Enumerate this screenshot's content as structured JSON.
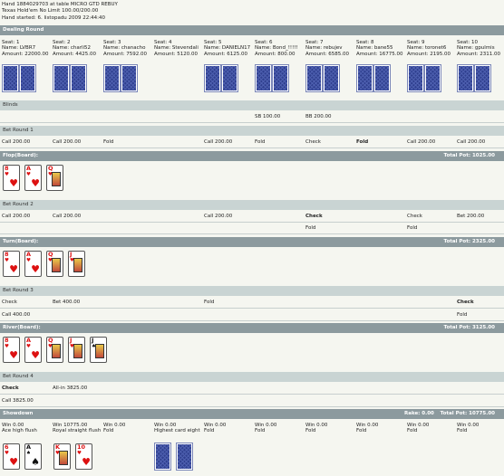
{
  "header": {
    "lines": [
      "Hand 1884029703 at table MICRO GTD REBUY",
      "Texas Hold'em No Limit 100.00/200.00",
      "Hand started: 6. listopadu 2009 22:44:40"
    ]
  },
  "sections": {
    "dealing": "Dealing Round",
    "blinds": "Blinds",
    "bet1": "Bet Round 1",
    "flop": "Flop(Board):",
    "bet2": "Bet Round 2",
    "turn": "Turn(Board):",
    "bet3": "Bet Round 3",
    "river": "River(Board):",
    "bet4": "Bet Round 4",
    "showdown": "Showdown"
  },
  "totals": {
    "flop": "Total Pot: 1025.00",
    "turn": "Total Pot: 2325.00",
    "river": "Total Pot: 3125.00",
    "showdown": "Total Pot: 10775.00",
    "rake": "Rake: 0.00"
  },
  "seats": [
    {
      "seat": "Seat: 1",
      "name": "Name: LVBR7",
      "amount": "Amount: 22000.00"
    },
    {
      "seat": "Seat: 2",
      "name": "Name: charli52",
      "amount": "Amount: 4425.00"
    },
    {
      "seat": "Seat: 3",
      "name": "Name: chanacho",
      "amount": "Amount: 7592.00"
    },
    {
      "seat": "Seat: 4",
      "name": "Name: Stevendali",
      "amount": "Amount: 5120.00"
    },
    {
      "seat": "Seat: 5",
      "name": "Name: DANIELN17",
      "amount": "Amount: 6125.00"
    },
    {
      "seat": "Seat: 6",
      "name": "Name: Bond_!!!!!",
      "amount": "Amount: 800.00"
    },
    {
      "seat": "Seat: 7",
      "name": "Name: rebujev",
      "amount": "Amount: 6585.00"
    },
    {
      "seat": "Seat: 8",
      "name": "Name: bane55",
      "amount": "Amount: 16775.00"
    },
    {
      "seat": "Seat: 9",
      "name": "Name: toronet6",
      "amount": "Amount: 2195.00"
    },
    {
      "seat": "Seat: 10",
      "name": "Name: gpulmis",
      "amount": "Amount: 2311.00"
    }
  ],
  "blinds": {
    "sb": "SB 100.00",
    "bb": "BB 200.00"
  },
  "bet1": [
    "Call 200.00",
    "Call 200.00",
    "Fold",
    "",
    "Call 200.00",
    "Fold",
    "Check",
    "Fold",
    "Call 200.00",
    "Call 200.00"
  ],
  "bet2a": [
    "Call 200.00",
    "Call 200.00",
    "",
    "",
    "Call 200.00",
    "",
    "Check",
    "",
    "Check",
    "Bet 200.00"
  ],
  "bet2b": [
    "",
    "",
    "",
    "",
    "",
    "",
    "Fold",
    "",
    "Fold",
    ""
  ],
  "bet3a": [
    "Check",
    "Bet 400.00",
    "",
    "",
    "Fold",
    "",
    "",
    "",
    "",
    "Check"
  ],
  "bet3b": [
    "Call 400.00",
    "",
    "",
    "",
    "",
    "",
    "",
    "",
    "",
    "Fold"
  ],
  "bet4a": [
    "Check",
    "All-in 3825.00"
  ],
  "bet4b": [
    "Call 3825.00"
  ],
  "showdown": [
    {
      "win": "Win 0.00",
      "desc": "Ace high flush"
    },
    {
      "win": "Win 10775.00",
      "desc": "Royal straight flush"
    },
    {
      "win": "Win 0.00",
      "desc": "Fold"
    },
    {
      "win": "Win 0.00",
      "desc": "Highest card eight"
    },
    {
      "win": "Win 0.00",
      "desc": "Fold"
    },
    {
      "win": "Win 0.00",
      "desc": "Fold"
    },
    {
      "win": "Win 0.00",
      "desc": "Fold"
    },
    {
      "win": "Win 0.00",
      "desc": "Fold"
    },
    {
      "win": "Win 0.00",
      "desc": "Fold"
    },
    {
      "win": "Win 0.00",
      "desc": "Fold"
    }
  ],
  "cards": {
    "flop": [
      {
        "r": "8",
        "s": "♥",
        "c": "red"
      },
      {
        "r": "A",
        "s": "♥",
        "c": "red"
      },
      {
        "r": "Q",
        "s": "♥",
        "c": "red"
      }
    ],
    "turn": [
      {
        "r": "8",
        "s": "♥",
        "c": "red"
      },
      {
        "r": "A",
        "s": "♥",
        "c": "red"
      },
      {
        "r": "Q",
        "s": "♥",
        "c": "red"
      },
      {
        "r": "J",
        "s": "♥",
        "c": "red"
      }
    ],
    "river": [
      {
        "r": "8",
        "s": "♥",
        "c": "red"
      },
      {
        "r": "A",
        "s": "♥",
        "c": "red"
      },
      {
        "r": "Q",
        "s": "♥",
        "c": "red"
      },
      {
        "r": "J",
        "s": "♥",
        "c": "red"
      },
      {
        "r": "J",
        "s": "♠",
        "c": "blk"
      }
    ],
    "show1": [
      {
        "r": "6",
        "s": "♥",
        "c": "red"
      },
      {
        "r": "A",
        "s": "♠",
        "c": "blk"
      }
    ],
    "show2": [
      {
        "r": "K",
        "s": "♥",
        "c": "red"
      },
      {
        "r": "10",
        "s": "♥",
        "c": "red"
      }
    ]
  }
}
